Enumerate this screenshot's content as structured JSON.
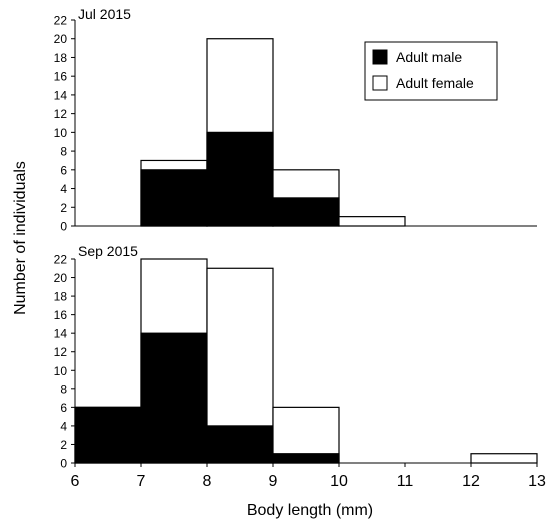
{
  "chart_data": {
    "type": "bar",
    "stacked": true,
    "xlabel": "Body length (mm)",
    "ylabel": "Number of individuals",
    "xlim": [
      6,
      13
    ],
    "x_ticks": [
      6,
      7,
      8,
      9,
      10,
      11,
      12,
      13
    ],
    "legend": {
      "placement": "top-right",
      "entries": [
        {
          "name": "Adult male",
          "color": "#000000"
        },
        {
          "name": "Adult female",
          "color": "#ffffff"
        }
      ]
    },
    "panels": [
      {
        "title": "Jul 2015",
        "ylim": [
          0,
          22
        ],
        "y_ticks": [
          0,
          2,
          4,
          6,
          8,
          10,
          12,
          14,
          16,
          18,
          20,
          22
        ],
        "bins": [
          [
            6,
            7
          ],
          [
            7,
            8
          ],
          [
            8,
            9
          ],
          [
            9,
            10
          ],
          [
            10,
            11
          ],
          [
            11,
            12
          ],
          [
            12,
            13
          ]
        ],
        "series": [
          {
            "name": "Adult male",
            "values": [
              0,
              6,
              10,
              3,
              0,
              0,
              0
            ]
          },
          {
            "name": "Adult female",
            "values": [
              0,
              1,
              10,
              3,
              1,
              0,
              0
            ]
          }
        ]
      },
      {
        "title": "Sep 2015",
        "ylim": [
          0,
          22
        ],
        "y_ticks": [
          0,
          2,
          4,
          6,
          8,
          10,
          12,
          14,
          16,
          18,
          20,
          22
        ],
        "bins": [
          [
            6,
            7
          ],
          [
            7,
            8
          ],
          [
            8,
            9
          ],
          [
            9,
            10
          ],
          [
            10,
            11
          ],
          [
            11,
            12
          ],
          [
            12,
            13
          ]
        ],
        "series": [
          {
            "name": "Adult male",
            "values": [
              6,
              14,
              4,
              1,
              0,
              0,
              0
            ]
          },
          {
            "name": "Adult female",
            "values": [
              0,
              8,
              17,
              5,
              0,
              0,
              1
            ]
          }
        ]
      }
    ]
  }
}
